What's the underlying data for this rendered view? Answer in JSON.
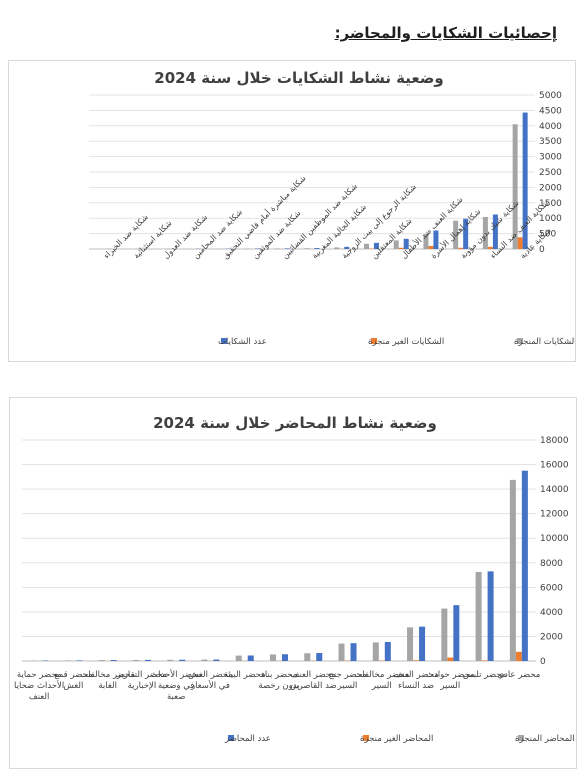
{
  "page_heading": "إحصائيات الشكايات والمحاضر:",
  "colors": {
    "total": "#4472C4",
    "pending": "#ED7D31",
    "done": "#A5A5A5"
  },
  "chart_data": [
    {
      "type": "bar",
      "title": "وضعية نشاط الشكايات خلال سنة 2024",
      "ylim": [
        0,
        5000
      ],
      "yticks": [
        0,
        500,
        1000,
        1500,
        2000,
        2500,
        3000,
        3500,
        4000,
        4500,
        5000
      ],
      "grid": true,
      "legend": "bottom",
      "categories": [
        "شكاية عادية",
        "شكاية العنف ضد النساء",
        "شكاية شيك بدون مؤونة",
        "شكاية إهمال الأسرة",
        "شكاية العنف ضد الأطفال",
        "شكاية المعتقلين",
        "شكاية الرجوع إلى بيت الزوجية",
        "شكاية الجالية المغربية",
        "شكاية ضد الموظفين القضائيين",
        "شكاية ضد الموثقين",
        "شكاية مباشرة أمام قاضي التحقيق",
        "شكاية ضد المحامين",
        "شكاية ضد العدول",
        "شكاية استثنائية",
        "شكاية ضد الخبراء"
      ],
      "series": [
        {
          "name": "عدد الشكايات",
          "color": "#4472C4",
          "values": [
            4430,
            1120,
            980,
            600,
            330,
            200,
            70,
            30,
            20,
            15,
            10,
            8,
            5,
            4,
            3
          ]
        },
        {
          "name": "الشكايات الغير منجزة",
          "color": "#ED7D31",
          "values": [
            380,
            70,
            40,
            100,
            40,
            15,
            5,
            3,
            2,
            2,
            1,
            1,
            1,
            0,
            0
          ]
        },
        {
          "name": "الشكايات المنجزة",
          "color": "#A5A5A5",
          "values": [
            4050,
            1040,
            920,
            480,
            280,
            170,
            50,
            25,
            18,
            12,
            8,
            6,
            4,
            3,
            2
          ]
        }
      ]
    },
    {
      "type": "bar",
      "title": "وضعية نشاط المحاضر خلال سنة 2024",
      "ylim": [
        0,
        18000
      ],
      "yticks": [
        0,
        2000,
        4000,
        6000,
        8000,
        10000,
        12000,
        14000,
        16000,
        18000
      ],
      "grid": true,
      "legend": "bottom",
      "categories": [
        "محضر عادي",
        "محضر تلبس",
        "محضر حوادث السير",
        "محضر العنف ضد النساء",
        "محضر مخالفات السير",
        "محضر جنح السير",
        "محضر العنف ضد القاصرين",
        "محضر بناء بدون رخصة",
        "محضر البيئة",
        "محضر الغش في الأسعار",
        "محضر الأحداث في وضعية صعبة",
        "محضر التقارير الإخبارية",
        "محضر مخالفات الغابة",
        "محضر قمع الغش",
        "محضر حماية الأحداث ضحايا العنف"
      ],
      "series": [
        {
          "name": "عدد المحاضر",
          "color": "#4472C4",
          "values": [
            15500,
            7300,
            4550,
            2800,
            1550,
            1450,
            650,
            550,
            450,
            120,
            100,
            90,
            80,
            50,
            40
          ]
        },
        {
          "name": "المحاضر الغير منجزة",
          "color": "#ED7D31",
          "values": [
            750,
            50,
            280,
            60,
            40,
            30,
            20,
            15,
            10,
            5,
            5,
            5,
            5,
            3,
            2
          ]
        },
        {
          "name": "المحاضر المنجزة",
          "color": "#A5A5A5",
          "values": [
            14750,
            7250,
            4270,
            2740,
            1510,
            1420,
            630,
            535,
            440,
            115,
            95,
            85,
            75,
            47,
            38
          ]
        }
      ]
    }
  ]
}
